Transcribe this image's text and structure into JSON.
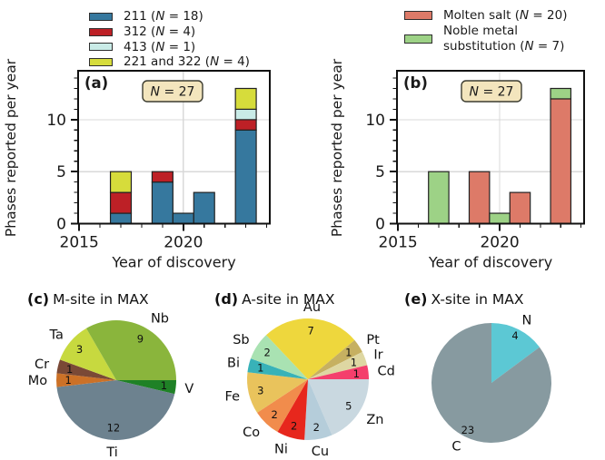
{
  "chart_data": [
    {
      "id": "a",
      "type": "stacked_bar",
      "panel_label": "(a)",
      "badge": "N = 27",
      "xlabel": "Year of discovery",
      "ylabel": "Phases reported per year",
      "xlim": [
        2014.95,
        2024.15
      ],
      "ylim": [
        0,
        14.7
      ],
      "xticks": {
        "major": [
          {
            "v": 2015,
            "label": "2015"
          },
          {
            "v": 2020,
            "label": "2020"
          }
        ],
        "minor": [
          2016,
          2017,
          2018,
          2019,
          2021,
          2022,
          2023,
          2024
        ]
      },
      "yticks": {
        "major": [
          {
            "v": 0,
            "label": "0"
          },
          {
            "v": 5,
            "label": "5"
          },
          {
            "v": 10,
            "label": "10"
          }
        ],
        "minor": [
          1,
          2,
          3,
          4,
          6,
          7,
          8,
          9,
          11,
          12,
          13,
          14
        ]
      },
      "grid": {
        "x": [
          2020
        ],
        "y": [
          5,
          10
        ]
      },
      "legend": [
        {
          "label": "211 (N = 18)",
          "color": "#36789e"
        },
        {
          "label": "312 (N = 4)",
          "color": "#bd2026"
        },
        {
          "label": "413 (N = 1)",
          "color": "#c9ebe7"
        },
        {
          "label": "221 and 322 (N = 4)",
          "color": "#d6dc3b"
        }
      ],
      "series": [
        {
          "name": "211",
          "color": "#36789e"
        },
        {
          "name": "312",
          "color": "#bd2026"
        },
        {
          "name": "413",
          "color": "#c9ebe7"
        },
        {
          "name": "221 and 322",
          "color": "#d6dc3b"
        }
      ],
      "bars": [
        {
          "year": 2017,
          "segments": [
            {
              "series": "211",
              "value": 1
            },
            {
              "series": "312",
              "value": 2
            },
            {
              "series": "221 and 322",
              "value": 2
            }
          ]
        },
        {
          "year": 2019,
          "segments": [
            {
              "series": "211",
              "value": 4
            },
            {
              "series": "312",
              "value": 1
            }
          ]
        },
        {
          "year": 2020,
          "segments": [
            {
              "series": "211",
              "value": 1
            }
          ]
        },
        {
          "year": 2021,
          "segments": [
            {
              "series": "211",
              "value": 3
            }
          ]
        },
        {
          "year": 2023,
          "segments": [
            {
              "series": "211",
              "value": 9
            },
            {
              "series": "312",
              "value": 1
            },
            {
              "series": "413",
              "value": 1
            },
            {
              "series": "221 and 322",
              "value": 2
            }
          ]
        }
      ]
    },
    {
      "id": "b",
      "type": "stacked_bar",
      "panel_label": "(b)",
      "badge": "N = 27",
      "xlabel": "Year of discovery",
      "ylabel": "Phases reported per year",
      "xlim": [
        2014.95,
        2024.15
      ],
      "ylim": [
        0,
        14.7
      ],
      "xticks": {
        "major": [
          {
            "v": 2015,
            "label": "2015"
          },
          {
            "v": 2020,
            "label": "2020"
          }
        ],
        "minor": [
          2016,
          2017,
          2018,
          2019,
          2021,
          2022,
          2023,
          2024
        ]
      },
      "yticks": {
        "major": [
          {
            "v": 0,
            "label": "0"
          },
          {
            "v": 5,
            "label": "5"
          },
          {
            "v": 10,
            "label": "10"
          }
        ],
        "minor": [
          1,
          2,
          3,
          4,
          6,
          7,
          8,
          9,
          11,
          12,
          13,
          14
        ]
      },
      "grid": {
        "x": [
          2020
        ],
        "y": [
          5,
          10
        ]
      },
      "legend": [
        {
          "label": "Molten salt (N = 20)",
          "color": "#dd7a68"
        },
        {
          "label": "Noble metal\nsubstitution (N = 7)",
          "color": "#9dd286"
        }
      ],
      "series": [
        {
          "name": "Molten salt",
          "color": "#dd7a68"
        },
        {
          "name": "Noble metal substitution",
          "color": "#9dd286"
        }
      ],
      "bars": [
        {
          "year": 2017,
          "segments": [
            {
              "series": "Noble metal substitution",
              "value": 5
            }
          ]
        },
        {
          "year": 2019,
          "segments": [
            {
              "series": "Molten salt",
              "value": 5
            }
          ]
        },
        {
          "year": 2020,
          "segments": [
            {
              "series": "Noble metal substitution",
              "value": 1
            }
          ]
        },
        {
          "year": 2021,
          "segments": [
            {
              "series": "Molten salt",
              "value": 3
            }
          ]
        },
        {
          "year": 2023,
          "segments": [
            {
              "series": "Molten salt",
              "value": 12
            },
            {
              "series": "Noble metal substitution",
              "value": 1
            }
          ]
        }
      ]
    },
    {
      "id": "c",
      "type": "pie",
      "title_letter": "(c)",
      "title": "M-site in MAX",
      "total": 27,
      "start_angle_deg": 0,
      "clockwise": true,
      "slices": [
        {
          "label": "V",
          "value": 1,
          "color": "#1f8126"
        },
        {
          "label": "Ti",
          "value": 12,
          "color": "#6d828f"
        },
        {
          "label": "Mo",
          "value": 1,
          "color": "#cc7127"
        },
        {
          "label": "Cr",
          "value": 1,
          "color": "#7a4936"
        },
        {
          "label": "Ta",
          "value": 3,
          "color": "#c7d93f"
        },
        {
          "label": "Nb",
          "value": 9,
          "color": "#8ab53c"
        }
      ]
    },
    {
      "id": "d",
      "type": "pie",
      "title_letter": "(d)",
      "title": "A-site in MAX",
      "total": 27,
      "start_angle_deg": 0,
      "clockwise": true,
      "slices": [
        {
          "label": "Zn",
          "value": 5,
          "color": "#c9d8e0"
        },
        {
          "label": "Cu",
          "value": 2,
          "color": "#b5cdda"
        },
        {
          "label": "Ni",
          "value": 2,
          "color": "#e7271d"
        },
        {
          "label": "Co",
          "value": 2,
          "color": "#f18c4c"
        },
        {
          "label": "Fe",
          "value": 3,
          "color": "#e9c35c"
        },
        {
          "label": "Bi",
          "value": 1,
          "color": "#38b2b8"
        },
        {
          "label": "Sb",
          "value": 2,
          "color": "#a9e2b2"
        },
        {
          "label": "Au",
          "value": 7,
          "color": "#eed73d"
        },
        {
          "label": "Pt",
          "value": 1,
          "color": "#c6b061"
        },
        {
          "label": "Ir",
          "value": 1,
          "color": "#ded7a2"
        },
        {
          "label": "Cd",
          "value": 1,
          "color": "#f43f6c"
        }
      ]
    },
    {
      "id": "e",
      "type": "pie",
      "title_letter": "(e)",
      "title": "X-site in MAX",
      "total": 27,
      "start_angle_deg": 90,
      "clockwise": true,
      "slices": [
        {
          "label": "N",
          "value": 4,
          "color": "#5cc8d4"
        },
        {
          "label": "C",
          "value": 23,
          "color": "#879aa0"
        }
      ]
    }
  ],
  "style_colors": {
    "grid": "#d9d9d9",
    "spine": "#111111",
    "bar_edge": "#222222",
    "badge_bg": "#f3e5bd",
    "badge_border": "#3c3c30",
    "text": "#1a1a1a"
  }
}
